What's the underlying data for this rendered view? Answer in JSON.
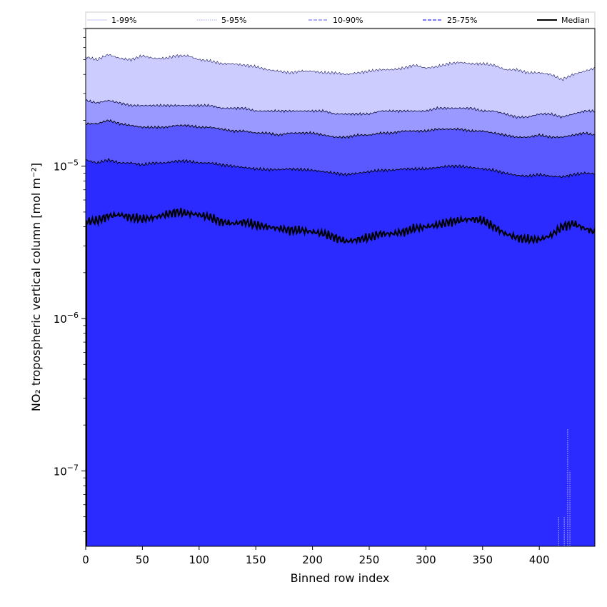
{
  "chart_data": {
    "type": "area",
    "xlabel": "Binned row index",
    "ylabel": "NO₂ tropospheric vertical column [mol m⁻²]",
    "xlim": [
      0,
      449
    ],
    "ylim": [
      3.2e-08,
      8e-05
    ],
    "yscale": "log",
    "x_ticks": [
      0,
      50,
      100,
      150,
      200,
      250,
      300,
      350,
      400
    ],
    "y_ticks": [
      {
        "value": 1e-07,
        "base": "10",
        "exp": "−7"
      },
      {
        "value": 1e-06,
        "base": "10",
        "exp": "−6"
      },
      {
        "value": 1e-05,
        "base": "10",
        "exp": "−5"
      }
    ],
    "legend": {
      "placement": "top, spanning plot width",
      "entries": [
        {
          "label": "1-99%",
          "color": "#d8d8f8",
          "dash": "solid"
        },
        {
          "label": "5-95%",
          "color": "#c2c2f4",
          "dash": "dotted"
        },
        {
          "label": "10-90%",
          "color": "#8f8ff5",
          "dash": "dashed"
        },
        {
          "label": "25-75%",
          "color": "#5050f0",
          "dash": "dashed"
        },
        {
          "label": "Median",
          "color": "#000000",
          "dash": "solid"
        }
      ]
    },
    "band_colors": {
      "p95_p75": "#ccccff",
      "p90_p75": "#9999ff",
      "p75_p25": "#5959ff",
      "p25_floor": "#2b2bff"
    },
    "x": [
      0,
      10,
      20,
      30,
      40,
      50,
      60,
      70,
      80,
      90,
      100,
      110,
      120,
      130,
      140,
      150,
      160,
      170,
      180,
      190,
      200,
      210,
      220,
      230,
      240,
      250,
      260,
      270,
      280,
      290,
      300,
      310,
      320,
      330,
      340,
      350,
      360,
      370,
      380,
      390,
      400,
      410,
      420,
      430,
      440,
      449
    ],
    "series": [
      {
        "name": "95%",
        "values": [
          5.2e-05,
          5e-05,
          5.4e-05,
          5.1e-05,
          5e-05,
          5.3e-05,
          5.1e-05,
          5.1e-05,
          5.3e-05,
          5.3e-05,
          5e-05,
          4.9e-05,
          4.7e-05,
          4.7e-05,
          4.6e-05,
          4.5e-05,
          4.3e-05,
          4.2e-05,
          4.1e-05,
          4.2e-05,
          4.2e-05,
          4.1e-05,
          4.1e-05,
          4e-05,
          4.1e-05,
          4.2e-05,
          4.3e-05,
          4.3e-05,
          4.4e-05,
          4.6e-05,
          4.4e-05,
          4.5e-05,
          4.7e-05,
          4.8e-05,
          4.7e-05,
          4.7e-05,
          4.6e-05,
          4.3e-05,
          4.3e-05,
          4.1e-05,
          4.1e-05,
          4e-05,
          3.7e-05,
          4e-05,
          4.2e-05,
          4.4e-05
        ]
      },
      {
        "name": "90%",
        "values": [
          2.7e-05,
          2.6e-05,
          2.7e-05,
          2.6e-05,
          2.5e-05,
          2.5e-05,
          2.5e-05,
          2.5e-05,
          2.5e-05,
          2.5e-05,
          2.5e-05,
          2.5e-05,
          2.4e-05,
          2.4e-05,
          2.4e-05,
          2.3e-05,
          2.3e-05,
          2.3e-05,
          2.3e-05,
          2.3e-05,
          2.3e-05,
          2.3e-05,
          2.2e-05,
          2.2e-05,
          2.2e-05,
          2.2e-05,
          2.3e-05,
          2.3e-05,
          2.3e-05,
          2.3e-05,
          2.3e-05,
          2.4e-05,
          2.4e-05,
          2.4e-05,
          2.4e-05,
          2.3e-05,
          2.3e-05,
          2.2e-05,
          2.1e-05,
          2.1e-05,
          2.2e-05,
          2.2e-05,
          2.1e-05,
          2.2e-05,
          2.3e-05,
          2.3e-05
        ]
      },
      {
        "name": "75%",
        "values": [
          1.9e-05,
          1.9e-05,
          2e-05,
          1.9e-05,
          1.85e-05,
          1.8e-05,
          1.8e-05,
          1.8e-05,
          1.85e-05,
          1.85e-05,
          1.8e-05,
          1.8e-05,
          1.75e-05,
          1.7e-05,
          1.7e-05,
          1.65e-05,
          1.65e-05,
          1.6e-05,
          1.65e-05,
          1.65e-05,
          1.65e-05,
          1.6e-05,
          1.55e-05,
          1.55e-05,
          1.6e-05,
          1.6e-05,
          1.65e-05,
          1.65e-05,
          1.7e-05,
          1.7e-05,
          1.7e-05,
          1.75e-05,
          1.75e-05,
          1.75e-05,
          1.7e-05,
          1.7e-05,
          1.65e-05,
          1.6e-05,
          1.55e-05,
          1.55e-05,
          1.6e-05,
          1.55e-05,
          1.55e-05,
          1.6e-05,
          1.65e-05,
          1.6e-05
        ]
      },
      {
        "name": "25%",
        "values": [
          1.1e-05,
          1.05e-05,
          1.1e-05,
          1.05e-05,
          1.05e-05,
          1.02e-05,
          1.05e-05,
          1.05e-05,
          1.08e-05,
          1.08e-05,
          1.05e-05,
          1.05e-05,
          1.02e-05,
          1e-05,
          9.8e-06,
          9.6e-06,
          9.5e-06,
          9.5e-06,
          9.6e-06,
          9.5e-06,
          9.4e-06,
          9.2e-06,
          9e-06,
          8.8e-06,
          9e-06,
          9.2e-06,
          9.4e-06,
          9.4e-06,
          9.6e-06,
          9.6e-06,
          9.6e-06,
          9.8e-06,
          1e-05,
          1e-05,
          9.8e-06,
          9.6e-06,
          9.4e-06,
          9e-06,
          8.7e-06,
          8.6e-06,
          8.8e-06,
          8.6e-06,
          8.5e-06,
          8.8e-06,
          9e-06,
          8.9e-06
        ]
      },
      {
        "name": "Median",
        "values": [
          4.3e-06,
          4.4e-06,
          4.7e-06,
          4.8e-06,
          4.6e-06,
          4.5e-06,
          4.6e-06,
          4.8e-06,
          5e-06,
          4.9e-06,
          4.8e-06,
          4.6e-06,
          4.3e-06,
          4.2e-06,
          4.3e-06,
          4.1e-06,
          4e-06,
          3.9e-06,
          3.8e-06,
          3.8e-06,
          3.7e-06,
          3.6e-06,
          3.4e-06,
          3.2e-06,
          3.3e-06,
          3.4e-06,
          3.6e-06,
          3.6e-06,
          3.7e-06,
          3.9e-06,
          4e-06,
          4.1e-06,
          4.3e-06,
          4.4e-06,
          4.5e-06,
          4.4e-06,
          4e-06,
          3.6e-06,
          3.4e-06,
          3.3e-06,
          3.3e-06,
          3.5e-06,
          4e-06,
          4.2e-06,
          3.9e-06,
          3.7e-06
        ]
      }
    ]
  }
}
